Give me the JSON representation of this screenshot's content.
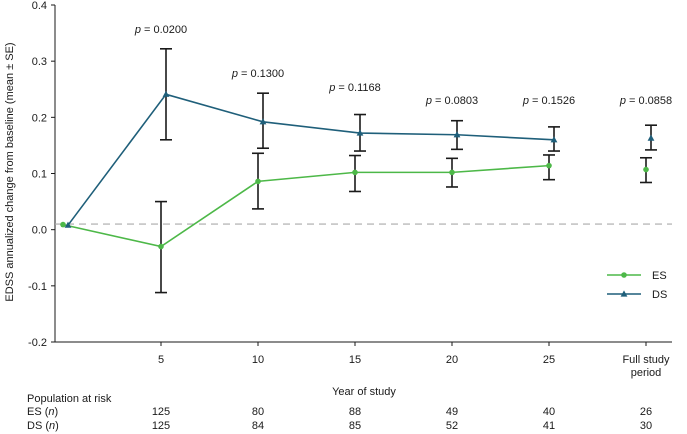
{
  "chart_data": {
    "type": "line",
    "ylabel": "EDSS annualized change from baseline (mean ± SE)",
    "xlabel": "Year of study",
    "ylim": [
      -0.2,
      0.4
    ],
    "y_ticks": [
      "-0.2",
      "-0.1",
      "0.0",
      "0.1",
      "0.2",
      "0.3",
      "0.4"
    ],
    "y_tick_values": [
      -0.2,
      -0.1,
      0.0,
      0.1,
      0.2,
      0.3,
      0.4
    ],
    "x_ticks": [
      "5",
      "10",
      "15",
      "20",
      "25",
      "Full study",
      "period"
    ],
    "reference_line": 0.01,
    "colors": {
      "ES": "#4db848",
      "DS": "#1f5f7a",
      "reference": "#aaaaaa",
      "errorbar": "#1a1a1a"
    },
    "series": [
      {
        "name": "ES",
        "marker": "circle",
        "points": [
          {
            "x": "0",
            "y": 0.009
          },
          {
            "x": "5",
            "y": -0.03,
            "lo": -0.112,
            "hi": 0.05
          },
          {
            "x": "10",
            "y": 0.086,
            "lo": 0.037,
            "hi": 0.136
          },
          {
            "x": "15",
            "y": 0.102,
            "lo": 0.068,
            "hi": 0.132
          },
          {
            "x": "20",
            "y": 0.102,
            "lo": 0.076,
            "hi": 0.127
          },
          {
            "x": "25",
            "y": 0.114,
            "lo": 0.089,
            "hi": 0.133
          },
          {
            "x": "Full study period",
            "y": 0.107,
            "lo": 0.084,
            "hi": 0.128,
            "connected": false
          }
        ]
      },
      {
        "name": "DS",
        "marker": "triangle",
        "points": [
          {
            "x": "0",
            "y": 0.008
          },
          {
            "x": "5",
            "y": 0.241,
            "lo": 0.16,
            "hi": 0.322
          },
          {
            "x": "10",
            "y": 0.192,
            "lo": 0.145,
            "hi": 0.243
          },
          {
            "x": "15",
            "y": 0.172,
            "lo": 0.14,
            "hi": 0.205
          },
          {
            "x": "20",
            "y": 0.169,
            "lo": 0.143,
            "hi": 0.194
          },
          {
            "x": "25",
            "y": 0.16,
            "lo": 0.14,
            "hi": 0.183
          },
          {
            "x": "Full study period",
            "y": 0.163,
            "lo": 0.142,
            "hi": 0.186,
            "connected": false
          }
        ]
      }
    ],
    "p_values": [
      {
        "x": "5",
        "prefix": "p",
        "text": " = 0.0200"
      },
      {
        "x": "10",
        "prefix": "p",
        "text": " = 0.1300"
      },
      {
        "x": "15",
        "prefix": "p",
        "text": " = 0.1168"
      },
      {
        "x": "20",
        "prefix": "p",
        "text": " = 0.0803"
      },
      {
        "x": "25",
        "prefix": "p",
        "text": " = 0.1526"
      },
      {
        "x": "Full study period",
        "prefix": "p",
        "text": " = 0.0858"
      }
    ],
    "legend": [
      {
        "label": "ES",
        "series": "ES"
      },
      {
        "label": "DS",
        "series": "DS"
      }
    ],
    "risk_table": {
      "title": "Population at risk",
      "rows": [
        {
          "label": "ES",
          "unit": "n",
          "values": [
            "125",
            "80",
            "88",
            "49",
            "40",
            "26"
          ]
        },
        {
          "label": "DS",
          "unit": "n",
          "values": [
            "125",
            "84",
            "85",
            "52",
            "41",
            "30"
          ]
        }
      ]
    }
  }
}
